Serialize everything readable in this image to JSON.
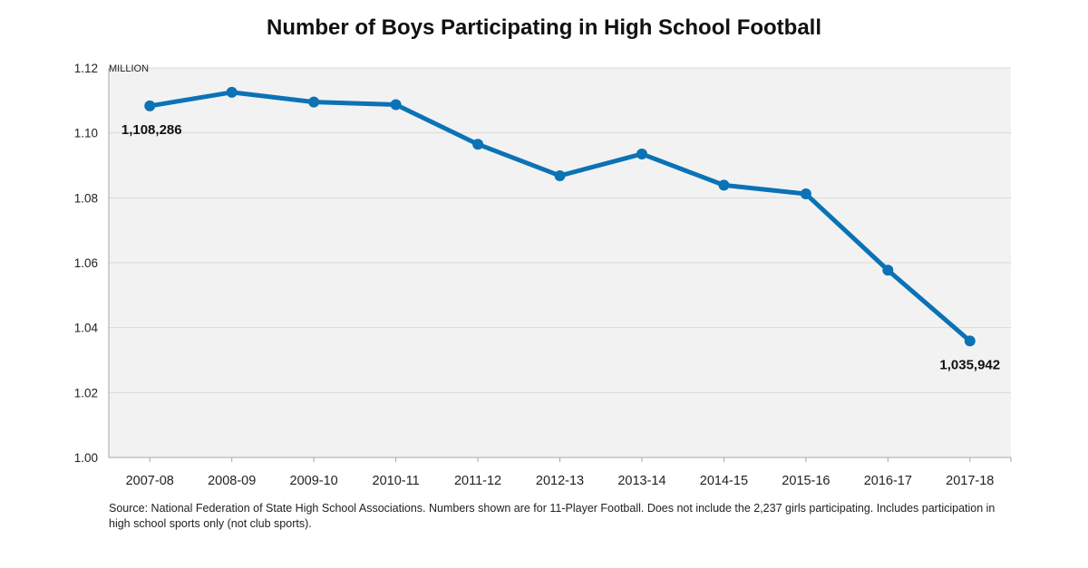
{
  "chart_data": {
    "type": "line",
    "title": "Number of Boys Participating in High School Football",
    "unit_label": "MILLION",
    "categories": [
      "2007-08",
      "2008-09",
      "2009-10",
      "2010-11",
      "2011-12",
      "2012-13",
      "2013-14",
      "2014-15",
      "2015-16",
      "2016-17",
      "2017-18"
    ],
    "series": [
      {
        "values": [
          1.1083,
          1.1125,
          1.1095,
          1.1087,
          1.0965,
          1.0868,
          1.0935,
          1.0839,
          1.0812,
          1.0577,
          1.0359
        ],
        "color": "#0b72b5"
      }
    ],
    "y_ticks": [
      "1.00",
      "1.02",
      "1.04",
      "1.06",
      "1.08",
      "1.10",
      "1.12"
    ],
    "ylim": [
      1.0,
      1.12
    ],
    "grid": true,
    "data_labels": [
      {
        "index": 0,
        "text": "1,108,286"
      },
      {
        "index": 10,
        "text": "1,035,942"
      }
    ],
    "plot_background": "#f2f2f2",
    "gridline_color": "#d9d9d9"
  },
  "source_note": "Source: National Federation of State High School Associations. Numbers shown are for 11-Player Football. Does not include the 2,237 girls participating. Includes participation in high school sports only (not club sports)."
}
